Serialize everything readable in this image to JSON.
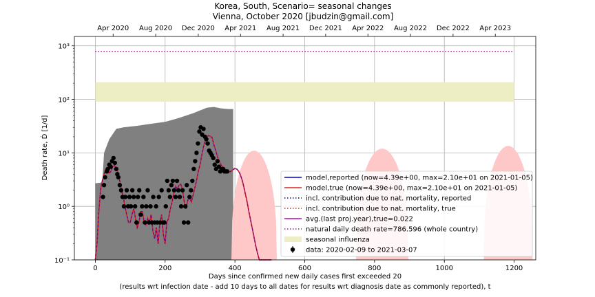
{
  "figure": {
    "title_line1": "Korea, South, Scenario= seasonal changes",
    "title_line2": "Vienna, October 2020 [jbudzin@gmail.com]"
  },
  "chart_data": {
    "type": "line",
    "title": "Korea, South, Scenario= seasonal changes",
    "subtitle": "Vienna, October 2020 [jbudzin@gmail.com]",
    "xlabel_line1": "Days since confirmed new daily cases first exceeded 20",
    "xlabel_line2": "(results wrt infection date - add 10 days to all dates for results wrt diagnosis date as commonly reported), t",
    "ylabel": "Death rate, Ḋ [1/d]",
    "xlim": [
      -60,
      1262
    ],
    "ylim": [
      0.1,
      1500
    ],
    "yscale": "log",
    "grid": true,
    "legend_placement": "lower-right",
    "x_ticks": [
      0,
      200,
      400,
      600,
      800,
      1000,
      1200
    ],
    "x_tick_labels": [
      "0",
      "200",
      "400",
      "600",
      "800",
      "1000",
      "1200"
    ],
    "y_ticks": [
      0.1,
      1,
      10,
      100,
      1000
    ],
    "y_tick_labels": [
      "10⁻¹",
      "10⁰",
      "10¹",
      "10²",
      "10³"
    ],
    "top_axis_ticks": [
      51,
      173,
      295,
      416,
      538,
      660,
      781,
      903,
      1025,
      1146
    ],
    "top_axis_labels": [
      "Apr 2020",
      "Aug 2020",
      "Dec 2020",
      "Apr 2021",
      "Aug 2021",
      "Dec 2021",
      "Apr 2022",
      "Aug 2022",
      "Dec 2022",
      "Apr 2023"
    ],
    "natural_death_rate": 786.596,
    "seasonal_influenza_band": [
      90,
      210
    ],
    "colors": {
      "model_reported": "#0000cc",
      "model_true": "#dd2222",
      "natural_mortality": "#bb00bb",
      "seasonal_influenza": "#eeeec5",
      "uncertainty_band": "#808080",
      "future_peaks": "#ffc8c8",
      "data_points": "#000000"
    },
    "legend": [
      {
        "label": "model,reported (now=4.39e+00, max=2.10e+01 on 2021-01-05)",
        "style": "solid",
        "color": "#0000cc"
      },
      {
        "label": "model,true (now=4.39e+00, max=2.10e+01 on 2021-01-05)",
        "style": "solid",
        "color": "#dd2222"
      },
      {
        "label": "incl. contribution due to nat. mortality, reported",
        "style": "dotted",
        "color": "#0000cc"
      },
      {
        "label": "incl. contribution due to nat. mortality, true",
        "style": "dotted",
        "color": "#dd2222"
      },
      {
        "label": "avg.(last proj.year),true=0.022",
        "style": "solid",
        "color": "#bb00bb"
      },
      {
        "label": "natural daily death rate=786.596 (whole country)",
        "style": "dotted",
        "color": "#bb00bb"
      },
      {
        "label": "seasonal influenza",
        "style": "patch",
        "color": "#eeeec5"
      },
      {
        "label": "data: 2020-02-09 to 2021-03-07",
        "style": "errorbar",
        "color": "#000000"
      }
    ],
    "model_curve": {
      "x": [
        0,
        5,
        10,
        15,
        20,
        25,
        30,
        35,
        40,
        45,
        50,
        55,
        60,
        65,
        70,
        75,
        80,
        85,
        90,
        95,
        100,
        105,
        110,
        115,
        120,
        125,
        130,
        135,
        140,
        145,
        150,
        155,
        160,
        165,
        170,
        175,
        180,
        185,
        190,
        195,
        200,
        205,
        210,
        215,
        220,
        225,
        230,
        235,
        240,
        245,
        250,
        255,
        260,
        265,
        270,
        275,
        280,
        285,
        290,
        295,
        300,
        305,
        310,
        315,
        320,
        325,
        330,
        335,
        340,
        345,
        350,
        355,
        360,
        365,
        370,
        375,
        380,
        385,
        390,
        395,
        400,
        405,
        410,
        415,
        420,
        425,
        430,
        435,
        440,
        445,
        450,
        455,
        460,
        465,
        470,
        475,
        480,
        485,
        490,
        495,
        500,
        505
      ],
      "y": [
        0.1,
        0.2,
        0.8,
        2.0,
        3.0,
        4.0,
        5.0,
        5.2,
        4.2,
        4.5,
        5.5,
        5.8,
        5.2,
        4.0,
        3.0,
        2.0,
        1.5,
        1.0,
        0.7,
        0.5,
        0.5,
        0.7,
        0.9,
        0.6,
        0.4,
        0.5,
        0.8,
        0.8,
        0.5,
        0.45,
        0.6,
        0.5,
        0.7,
        0.35,
        0.25,
        0.4,
        0.2,
        0.5,
        0.7,
        0.3,
        0.2,
        0.5,
        0.6,
        0.9,
        1.2,
        1.8,
        2.4,
        2.1,
        2.5,
        2.6,
        2.0,
        1.2,
        0.9,
        1.3,
        1.5,
        1.2,
        1.6,
        2.2,
        3.0,
        4.5,
        6.0,
        9.0,
        13.0,
        17.0,
        20.0,
        21.0,
        20.5,
        19.0,
        14.0,
        11.0,
        8.5,
        7.0,
        6.0,
        5.5,
        5.2,
        4.8,
        4.5,
        4.4,
        4.6,
        4.9,
        5.1,
        5.0,
        4.6,
        4.0,
        3.2,
        2.4,
        1.7,
        1.2,
        0.8,
        0.55,
        0.38,
        0.26,
        0.18,
        0.13,
        0.1,
        0.1,
        0.1,
        0.1,
        0.1,
        0.1,
        0.1,
        0.1
      ]
    },
    "data_points": {
      "x": [
        22,
        25,
        28,
        33,
        36,
        40,
        44,
        48,
        52,
        56,
        60,
        63,
        66,
        70,
        74,
        78,
        82,
        86,
        90,
        94,
        98,
        102,
        106,
        110,
        114,
        118,
        122,
        126,
        130,
        134,
        138,
        142,
        146,
        150,
        154,
        158,
        162,
        166,
        170,
        174,
        178,
        182,
        186,
        190,
        194,
        198,
        202,
        206,
        210,
        214,
        218,
        222,
        226,
        230,
        234,
        238,
        242,
        246,
        250,
        254,
        258,
        262,
        266,
        270,
        274,
        278,
        282,
        286,
        290,
        294,
        298,
        302,
        306,
        310,
        314,
        318,
        322,
        326,
        330,
        334,
        338,
        342,
        346,
        350,
        354,
        358,
        362,
        366,
        370,
        374,
        378
      ],
      "y": [
        1.5,
        2.5,
        3.5,
        4.5,
        5.0,
        6.0,
        5.5,
        7.0,
        8.0,
        6.5,
        5.0,
        4.0,
        3.5,
        2.5,
        2.0,
        1.5,
        1.0,
        1.5,
        2.0,
        1.0,
        1.5,
        1.0,
        2.0,
        1.5,
        1.0,
        0.5,
        1.5,
        2.0,
        0.7,
        1.0,
        1.5,
        0.5,
        1.0,
        2.0,
        0.5,
        1.0,
        0.5,
        1.5,
        0.5,
        1.0,
        0.5,
        1.5,
        0.5,
        2.0,
        0.5,
        0.5,
        1.0,
        3.0,
        2.0,
        1.5,
        2.5,
        3.0,
        2.0,
        1.5,
        3.0,
        2.0,
        1.5,
        1.0,
        2.0,
        0.5,
        1.0,
        2.5,
        0.5,
        1.5,
        2.0,
        3.0,
        5.0,
        7.0,
        10.0,
        15.0,
        25.0,
        30.0,
        22.0,
        28.0,
        20.0,
        18.0,
        15.0,
        11.0,
        10.0,
        9.0,
        8.0,
        6.0,
        5.0,
        7.0,
        5.5,
        4.5,
        5.0,
        5.0,
        4.5,
        4.5,
        4.5
      ]
    },
    "uncertainty_band": {
      "x": [
        0,
        20,
        25,
        40,
        60,
        80,
        120,
        160,
        200,
        240,
        280,
        300,
        320,
        340,
        360,
        380,
        395
      ],
      "lower": [
        0.1,
        0.1,
        0.1,
        0.1,
        0.1,
        0.1,
        0.1,
        0.1,
        0.1,
        0.1,
        0.1,
        0.1,
        0.1,
        0.1,
        0.1,
        0.1,
        0.1
      ],
      "upper": [
        2.7,
        2.8,
        10.0,
        18.0,
        28.0,
        30.0,
        32.0,
        35.0,
        38.0,
        45.0,
        55.0,
        62.0,
        70.0,
        72.0,
        68.0,
        66.0,
        66.0
      ]
    },
    "future_peaks": [
      {
        "center": 455,
        "peak": 11.0,
        "half_width": 65
      },
      {
        "center": 822,
        "peak": 12.0,
        "half_width": 75
      },
      {
        "center": 1183,
        "peak": 13.5,
        "half_width": 70
      }
    ]
  }
}
